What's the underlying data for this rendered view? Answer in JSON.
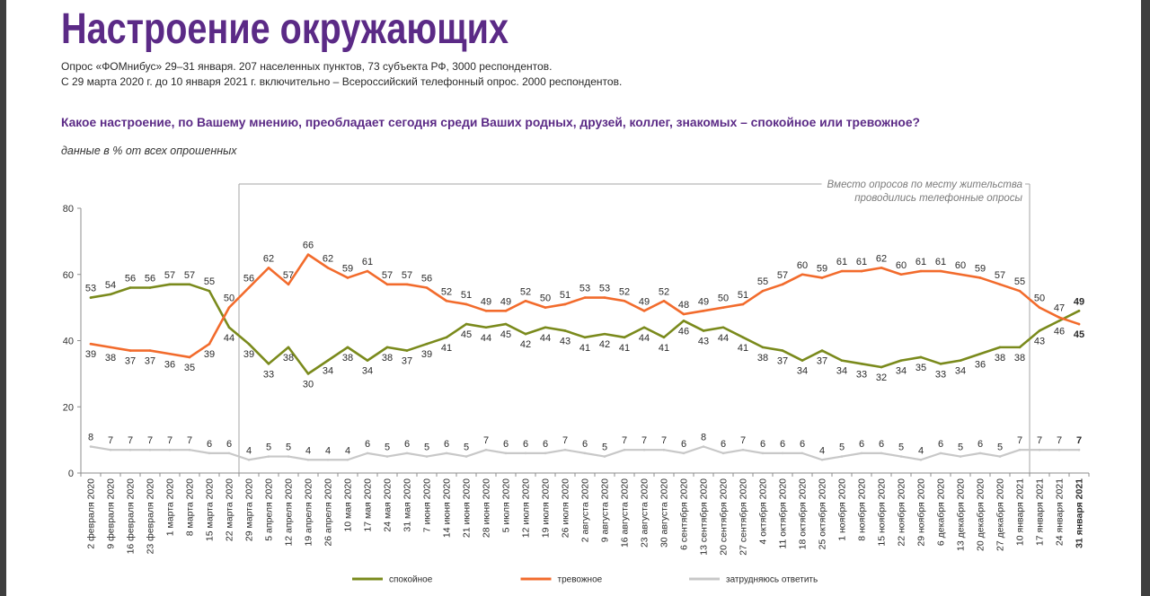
{
  "title": "Настроение окружающих",
  "subtitle_lines": [
    "Опрос «ФОМнибус» 29–31 января. 207 населенных пунктов, 73 субъекта РФ, 3000 респондентов.",
    "С 29 марта 2020 г. до 10 января 2021 г. включительно – Всероссийский телефонный опрос. 2000 респондентов."
  ],
  "question": "Какое настроение, по Вашему мнению, преобладает сегодня среди Ваших родных, друзей, коллег, знакомых – спокойное или тревожное?",
  "units_note": "данные в % от всех опрошенных",
  "theme": {
    "accent_color": "#5b2a86"
  },
  "chart_data": {
    "type": "line",
    "ylim": [
      0,
      80
    ],
    "yticks": [
      0,
      20,
      40,
      60,
      80
    ],
    "grid": false,
    "legend_position": "bottom",
    "categories": [
      "2 февраля 2020",
      "9 февраля 2020",
      "16 февраля 2020",
      "23 февраля 2020",
      "1 марта 2020",
      "8 марта 2020",
      "15 марта 2020",
      "22 марта 2020",
      "29 марта 2020",
      "5 апреля 2020",
      "12 апреля 2020",
      "19 апреля 2020",
      "26 апреля 2020",
      "10 мая 2020",
      "17 мая 2020",
      "24 мая 2020",
      "31 мая 2020",
      "7 июня 2020",
      "14 июня 2020",
      "21 июня 2020",
      "28 июня 2020",
      "5 июля 2020",
      "12 июля 2020",
      "19 июля 2020",
      "26 июля 2020",
      "2 августа 2020",
      "9 августа 2020",
      "16 августа 2020",
      "23 августа 2020",
      "30 августа 2020",
      "6 сентября 2020",
      "13 сентября 2020",
      "20 сентября 2020",
      "27 сентября 2020",
      "4 октября 2020",
      "11 октября 2020",
      "18 октября 2020",
      "25 октября 2020",
      "1 ноября 2020",
      "8 ноября 2020",
      "15 ноября 2020",
      "22 ноября 2020",
      "29 ноября 2020",
      "6 декабря 2020",
      "13 декабря 2020",
      "20 декабря 2020",
      "27 декабря 2020",
      "10 января 2021",
      "17 января 2021",
      "24 января 2021",
      "31 января 2021"
    ],
    "series": [
      {
        "name": "спокойное",
        "color": "#7a8a1c",
        "values": [
          53,
          54,
          56,
          56,
          57,
          57,
          55,
          44,
          39,
          33,
          38,
          30,
          34,
          38,
          34,
          38,
          37,
          39,
          41,
          45,
          44,
          45,
          42,
          44,
          43,
          41,
          42,
          41,
          44,
          41,
          46,
          43,
          44,
          41,
          38,
          37,
          34,
          37,
          34,
          33,
          32,
          34,
          35,
          33,
          34,
          36,
          38,
          38,
          43,
          46,
          49
        ]
      },
      {
        "name": "тревожное",
        "color": "#f26b2c",
        "values": [
          39,
          38,
          37,
          37,
          36,
          35,
          39,
          50,
          56,
          62,
          57,
          66,
          62,
          59,
          61,
          57,
          57,
          56,
          52,
          51,
          49,
          49,
          52,
          50,
          51,
          53,
          53,
          52,
          49,
          52,
          48,
          49,
          50,
          51,
          55,
          57,
          60,
          59,
          61,
          61,
          62,
          60,
          61,
          61,
          60,
          59,
          57,
          55,
          50,
          47,
          45
        ]
      },
      {
        "name": "затрудняюсь ответить",
        "color": "#c8c8c8",
        "values": [
          8,
          7,
          7,
          7,
          7,
          7,
          6,
          6,
          4,
          5,
          5,
          4,
          4,
          4,
          6,
          5,
          6,
          5,
          6,
          5,
          7,
          6,
          6,
          6,
          7,
          6,
          5,
          7,
          7,
          7,
          6,
          8,
          6,
          7,
          6,
          6,
          6,
          4,
          5,
          6,
          6,
          5,
          4,
          6,
          5,
          6,
          5,
          7,
          7,
          7,
          7
        ]
      }
    ],
    "annotation": {
      "lines": [
        "Вместо опросов по месту жительства",
        "проводились телефонные опросы"
      ],
      "span": [
        "29 марта 2020",
        "10 января 2021"
      ]
    }
  }
}
